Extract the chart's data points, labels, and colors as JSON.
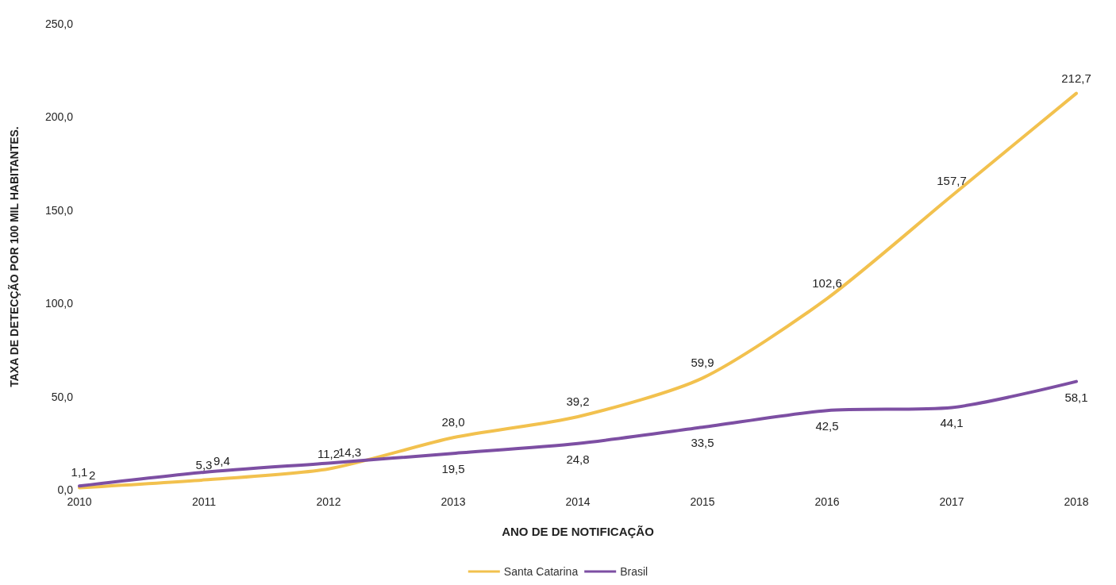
{
  "chart_data": {
    "type": "line",
    "xlabel": "ANO DE DE NOTIFICAÇÃO",
    "ylabel": "TAXA DE DETECÇÃO POR 100 MIL HABITANTES.",
    "categories": [
      "2010",
      "2011",
      "2012",
      "2013",
      "2014",
      "2015",
      "2016",
      "2017",
      "2018"
    ],
    "series": [
      {
        "name": "Santa Catarina",
        "color": "#f2c14e",
        "values": [
          1.1,
          5.3,
          11.2,
          28.0,
          39.2,
          59.9,
          102.6,
          157.7,
          212.7
        ],
        "value_labels": [
          "1,1",
          "5,3",
          "11,2",
          "28,0",
          "39,2",
          "59,9",
          "102,6",
          "157,7",
          "212,7"
        ]
      },
      {
        "name": "Brasil",
        "color": "#7d4fa3",
        "values": [
          2,
          9.4,
          14.3,
          19.5,
          24.8,
          33.5,
          42.5,
          44.1,
          58.1
        ],
        "value_labels": [
          "2",
          "9,4",
          "14,3",
          "19,5",
          "24,8",
          "33,5",
          "42,5",
          "44,1",
          "58,1"
        ]
      }
    ],
    "ylim": [
      0,
      250
    ],
    "yticks": [
      {
        "value": 0,
        "label": "0,0"
      },
      {
        "value": 50,
        "label": "50,0"
      },
      {
        "value": 100,
        "label": "100,0"
      },
      {
        "value": 150,
        "label": "150,0"
      },
      {
        "value": 200,
        "label": "200,0"
      },
      {
        "value": 250,
        "label": "250,0"
      }
    ],
    "grid": false,
    "legend": "bottom",
    "marker": "none",
    "line_style": "solid"
  }
}
